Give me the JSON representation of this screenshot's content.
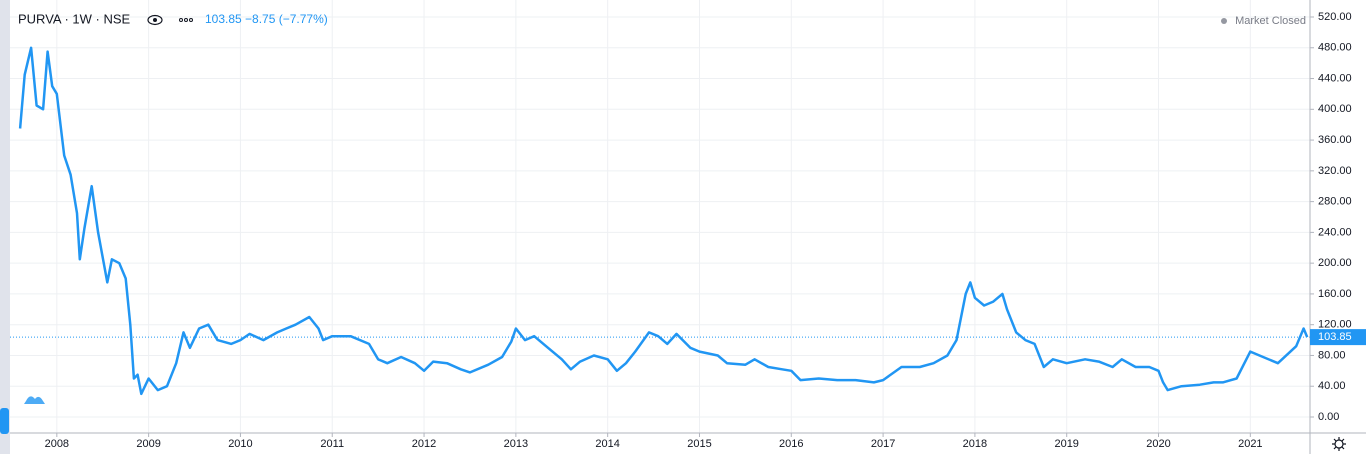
{
  "chart_data": {
    "type": "line",
    "title": "PURVA · 1W · NSE",
    "subtitle": "103.85 −8.75 (−7.77%)",
    "status": "Market Closed",
    "last_price": 103.85,
    "grid": true,
    "x": [
      2007.6,
      2007.65,
      2007.72,
      2007.78,
      2007.85,
      2007.9,
      2007.95,
      2008,
      2008.08,
      2008.15,
      2008.22,
      2008.25,
      2008.3,
      2008.38,
      2008.45,
      2008.55,
      2008.6,
      2008.68,
      2008.75,
      2008.8,
      2008.84,
      2008.88,
      2008.92,
      2009,
      2009.1,
      2009.2,
      2009.3,
      2009.38,
      2009.45,
      2009.55,
      2009.65,
      2009.75,
      2009.9,
      2010,
      2010.1,
      2010.25,
      2010.4,
      2010.5,
      2010.6,
      2010.75,
      2010.85,
      2010.9,
      2011,
      2011.2,
      2011.4,
      2011.5,
      2011.6,
      2011.75,
      2011.9,
      2012,
      2012.1,
      2012.25,
      2012.4,
      2012.5,
      2012.7,
      2012.85,
      2012.95,
      2013,
      2013.1,
      2013.2,
      2013.35,
      2013.5,
      2013.6,
      2013.7,
      2013.85,
      2014,
      2014.1,
      2014.2,
      2014.3,
      2014.45,
      2014.55,
      2014.65,
      2014.75,
      2014.9,
      2015,
      2015.2,
      2015.3,
      2015.5,
      2015.6,
      2015.75,
      2015.9,
      2016,
      2016.1,
      2016.3,
      2016.5,
      2016.7,
      2016.9,
      2017,
      2017.2,
      2017.4,
      2017.55,
      2017.7,
      2017.8,
      2017.9,
      2017.95,
      2018,
      2018.1,
      2018.2,
      2018.3,
      2018.35,
      2018.45,
      2018.55,
      2018.65,
      2018.75,
      2018.85,
      2019,
      2019.2,
      2019.35,
      2019.5,
      2019.6,
      2019.75,
      2019.9,
      2020,
      2020.05,
      2020.1,
      2020.25,
      2020.45,
      2020.6,
      2020.7,
      2020.85,
      2021,
      2021.1,
      2021.3,
      2021.5,
      2021.58,
      2021.62
    ],
    "series": [
      {
        "name": "PURVA",
        "color": "#2196f3",
        "values": [
          375,
          445,
          480,
          405,
          400,
          475,
          430,
          420,
          340,
          315,
          265,
          205,
          245,
          300,
          240,
          175,
          205,
          200,
          180,
          120,
          50,
          55,
          30,
          50,
          35,
          40,
          70,
          110,
          90,
          115,
          120,
          100,
          95,
          100,
          108,
          100,
          110,
          115,
          120,
          130,
          115,
          100,
          105,
          105,
          95,
          75,
          70,
          78,
          70,
          60,
          72,
          70,
          62,
          58,
          68,
          78,
          98,
          115,
          100,
          105,
          90,
          75,
          62,
          72,
          80,
          75,
          60,
          70,
          85,
          110,
          105,
          95,
          108,
          90,
          85,
          80,
          70,
          68,
          75,
          65,
          62,
          60,
          48,
          50,
          48,
          48,
          45,
          48,
          65,
          65,
          70,
          80,
          100,
          160,
          175,
          155,
          145,
          150,
          160,
          140,
          110,
          100,
          95,
          65,
          75,
          70,
          75,
          72,
          65,
          75,
          65,
          65,
          60,
          45,
          35,
          40,
          42,
          45,
          45,
          50,
          85,
          80,
          70,
          92,
          115,
          103.85
        ]
      }
    ],
    "xlim": [
      2007.49,
      2021.65
    ],
    "xticks": [
      2008,
      2009,
      2010,
      2011,
      2012,
      2013,
      2014,
      2015,
      2016,
      2017,
      2018,
      2019,
      2020,
      2021
    ],
    "ylim": [
      0,
      520
    ],
    "yticks": [
      {
        "value": 0,
        "label": "0.00"
      },
      {
        "value": 40,
        "label": "40.00"
      },
      {
        "value": 80,
        "label": "80.00"
      },
      {
        "value": 120,
        "label": "120.00"
      },
      {
        "value": 160,
        "label": "160.00"
      },
      {
        "value": 200,
        "label": "200.00"
      },
      {
        "value": 240,
        "label": "240.00"
      },
      {
        "value": 280,
        "label": "280.00"
      },
      {
        "value": 320,
        "label": "320.00"
      },
      {
        "value": 360,
        "label": "360.00"
      },
      {
        "value": 400,
        "label": "400.00"
      },
      {
        "value": 440,
        "label": "440.00"
      },
      {
        "value": 480,
        "label": "480.00"
      },
      {
        "value": 520,
        "label": "520.00"
      }
    ]
  }
}
